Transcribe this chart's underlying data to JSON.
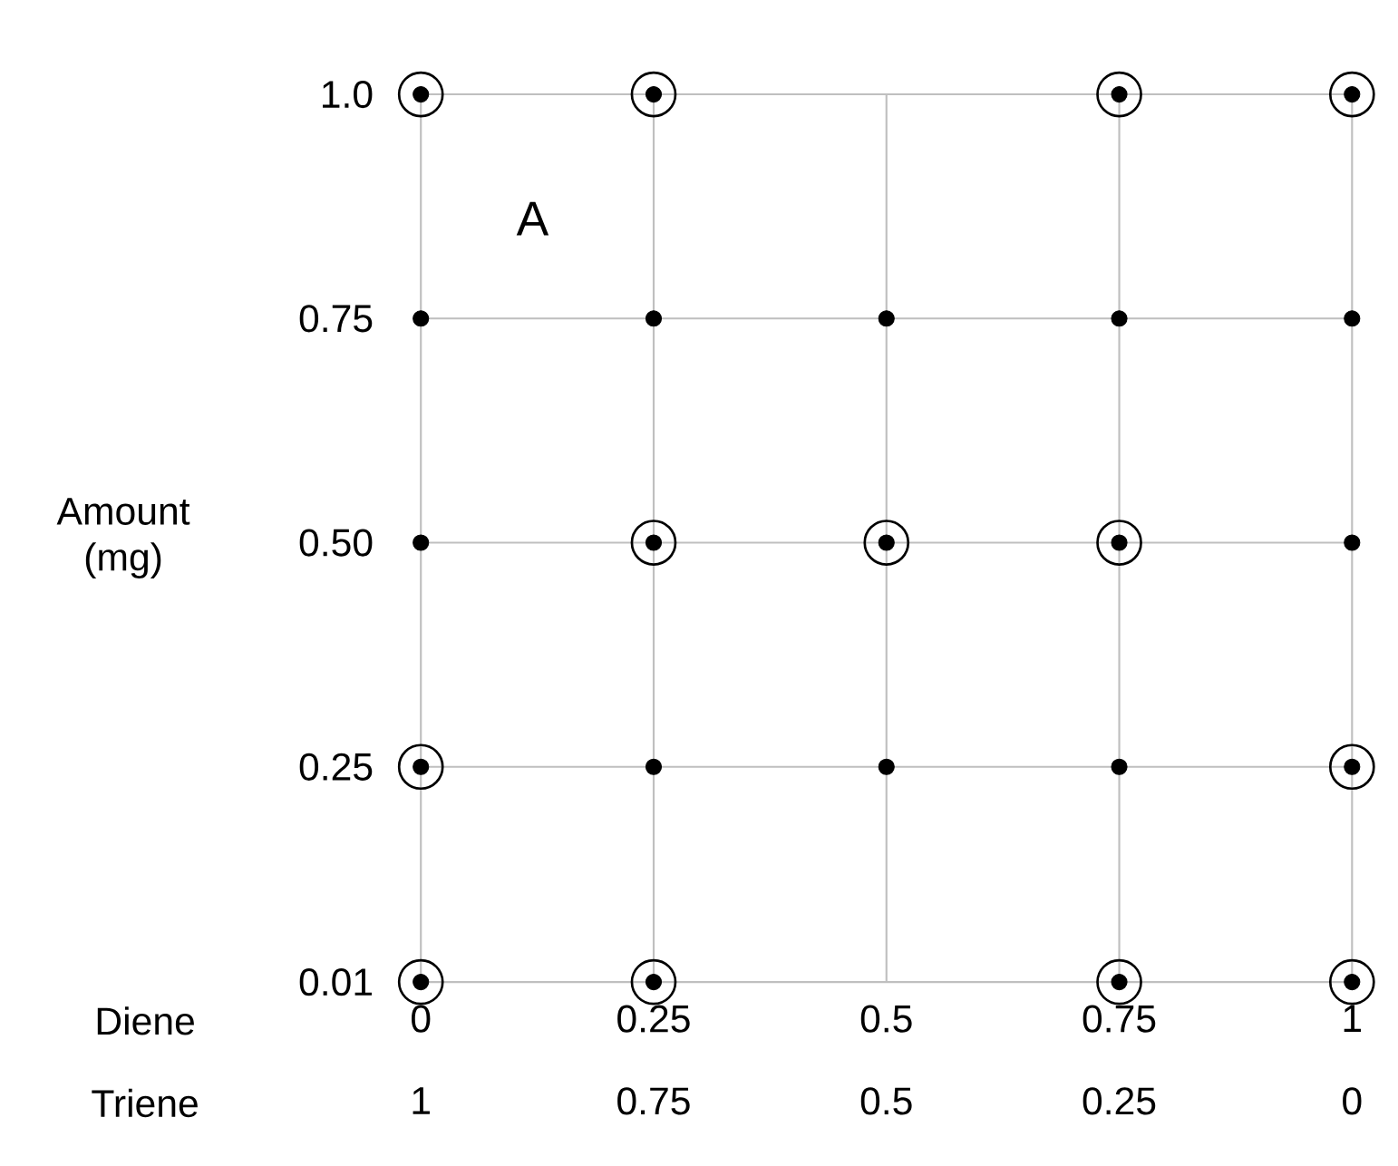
{
  "chart_data": {
    "type": "scatter",
    "xlabel": "Diene",
    "x2label": "Triene",
    "ylabel": "Amount (mg)",
    "xlim": [
      0,
      1
    ],
    "xticks": [
      0,
      0.25,
      0.5,
      0.75,
      1
    ],
    "x2lim": [
      1,
      0
    ],
    "x2ticks": [
      1,
      0.75,
      0.5,
      0.25,
      0
    ],
    "ylim": [
      0.01,
      1.0
    ],
    "yticks": [
      {
        "value": 0.01,
        "label": "0.01"
      },
      {
        "value": 0.25,
        "label": "0.25"
      },
      {
        "value": 0.5,
        "label": "0.50"
      },
      {
        "value": 0.75,
        "label": "0.75"
      },
      {
        "value": 1.0,
        "label": "1.0"
      }
    ],
    "grid": true,
    "annotations": [
      "A"
    ],
    "series": [
      {
        "color": "#000000",
        "marker": "circle",
        "x": [
          0,
          0.25,
          0.75,
          1,
          0,
          0.25,
          0.5,
          0.75,
          1,
          0,
          0.25,
          0.5,
          0.75,
          1,
          0,
          0.25,
          0.5,
          0.75,
          1,
          0,
          0.25,
          0.75,
          1
        ],
        "values": [
          1.0,
          1.0,
          1.0,
          1.0,
          0.75,
          0.75,
          0.75,
          0.75,
          0.75,
          0.5,
          0.5,
          0.5,
          0.5,
          0.5,
          0.25,
          0.25,
          0.25,
          0.25,
          0.25,
          0.01,
          0.01,
          0.01,
          0.01
        ]
      },
      {
        "color": "#000000",
        "marker": "open circle",
        "x": [
          0,
          0.25,
          0.75,
          1,
          0.25,
          0.5,
          0.75,
          0,
          1,
          0,
          0.25,
          0.75,
          1
        ],
        "values": [
          1.0,
          1.0,
          1.0,
          1.0,
          0.5,
          0.5,
          0.5,
          0.25,
          0.25,
          0.01,
          0.01,
          0.01,
          0.01
        ]
      }
    ]
  }
}
